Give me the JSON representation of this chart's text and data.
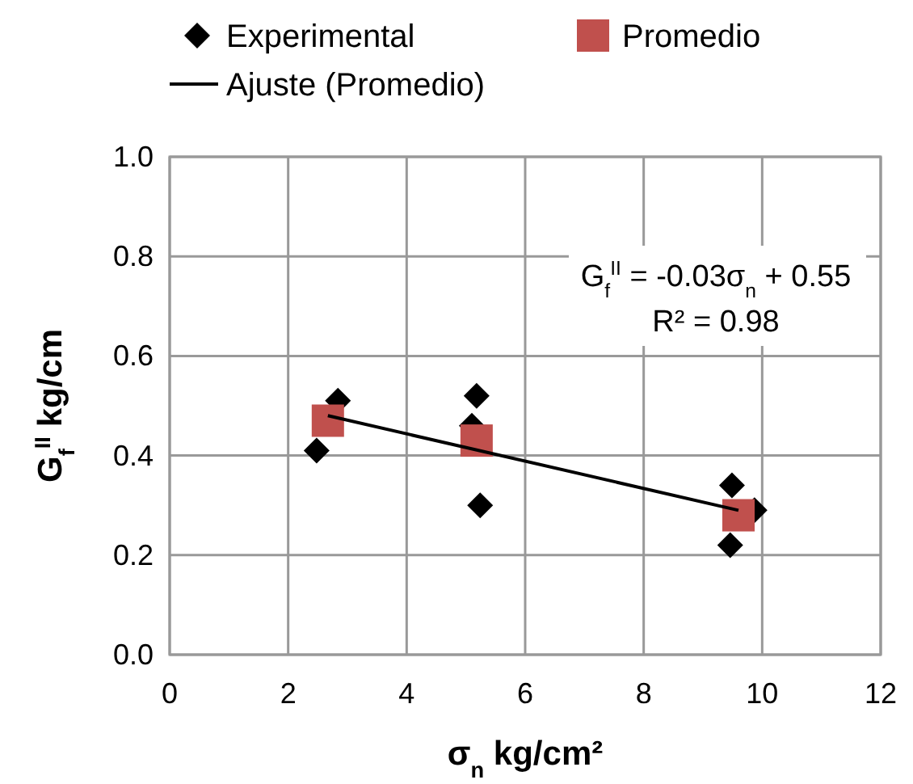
{
  "chart_data": {
    "type": "scatter",
    "xlabel": "σ$_{n}$ kg/cm²",
    "ylabel": "G$_{f}$$^{II}$ kg/cm",
    "xlim": [
      0,
      12
    ],
    "xticks": [
      0,
      2,
      4,
      6,
      8,
      10,
      12
    ],
    "ylim": [
      0,
      1
    ],
    "yticks": [
      {
        "value": 0,
        "label": "0.0"
      },
      {
        "value": 0.2,
        "label": "0.2"
      },
      {
        "value": 0.4,
        "label": "0.4"
      },
      {
        "value": 0.6,
        "label": "0.6"
      },
      {
        "value": 0.8,
        "label": "0.8"
      },
      {
        "value": 1,
        "label": "1.0"
      }
    ],
    "grid": true,
    "legend": "top",
    "series": [
      {
        "name": "Experimental",
        "marker": "diamond",
        "color": "#000000",
        "x": [
          2.48,
          2.84,
          5.18,
          5.1,
          5.24,
          9.49,
          9.87,
          9.46
        ],
        "values": [
          0.41,
          0.51,
          0.52,
          0.46,
          0.3,
          0.34,
          0.29,
          0.22
        ]
      },
      {
        "name": "Promedio",
        "marker": "square",
        "color": "#c0504d",
        "x": [
          2.67,
          5.18,
          9.6
        ],
        "values": [
          0.47,
          0.43,
          0.28
        ]
      },
      {
        "name": "Ajuste (Promedio)",
        "type": "line",
        "marker": "none",
        "color": "#000000",
        "x": [
          2.67,
          9.6
        ],
        "values": [
          0.48,
          0.29
        ]
      }
    ],
    "annotations": [
      "G$_{f}$$^{II}$ = -0.03σ$_{n}$ + 0.55",
      "R² = 0.98"
    ]
  }
}
